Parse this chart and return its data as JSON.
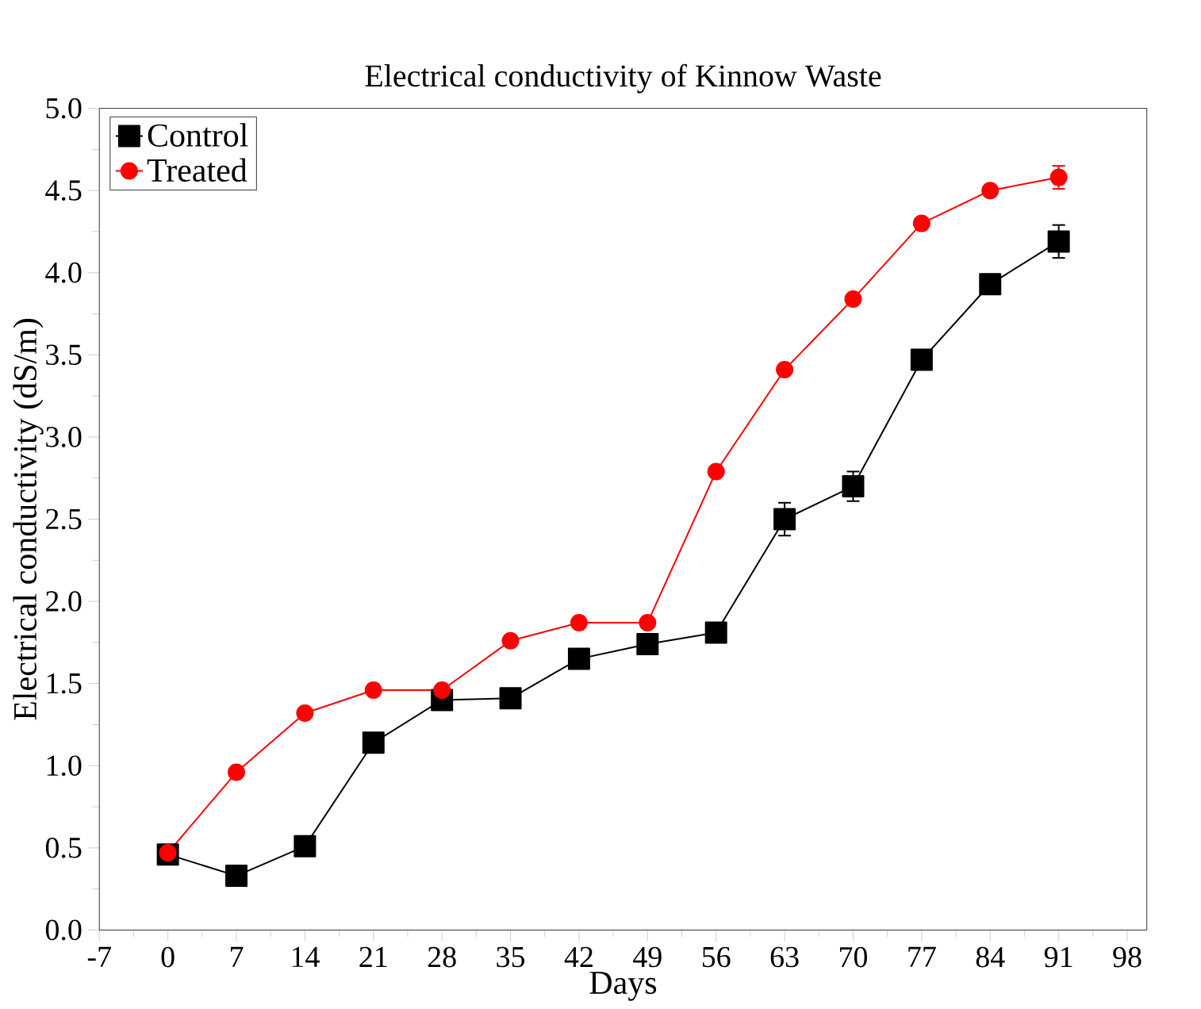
{
  "chart_data": {
    "type": "line",
    "title": "Electrical conductivity of Kinnow Waste",
    "xlabel": "Days",
    "ylabel": "Electrical conductivity (dS/m)",
    "x": [
      0,
      7,
      14,
      21,
      28,
      35,
      42,
      49,
      56,
      63,
      70,
      77,
      84,
      91
    ],
    "series": [
      {
        "name": "Control",
        "color": "#000000",
        "marker": "square",
        "values": [
          0.46,
          0.33,
          0.51,
          1.14,
          1.4,
          1.41,
          1.65,
          1.74,
          1.81,
          2.5,
          2.7,
          3.47,
          3.93,
          4.19
        ],
        "errors": [
          null,
          null,
          null,
          null,
          null,
          null,
          null,
          null,
          null,
          0.1,
          0.09,
          null,
          null,
          0.1
        ]
      },
      {
        "name": "Treated",
        "color": "#ff0000",
        "marker": "circle",
        "values": [
          0.47,
          0.96,
          1.32,
          1.46,
          1.46,
          1.76,
          1.87,
          1.87,
          2.79,
          3.41,
          3.84,
          4.3,
          4.5,
          4.58
        ],
        "errors": [
          null,
          null,
          null,
          null,
          null,
          null,
          null,
          null,
          null,
          null,
          null,
          null,
          null,
          0.07
        ]
      }
    ],
    "xlim": [
      -7,
      100
    ],
    "xticks": [
      -7,
      0,
      7,
      14,
      21,
      28,
      35,
      42,
      49,
      56,
      63,
      70,
      77,
      84,
      91,
      98
    ],
    "ylim": [
      0,
      5
    ],
    "yticks": [
      {
        "value": 0,
        "label": "0.0"
      },
      {
        "value": 0.5,
        "label": "0.5"
      },
      {
        "value": 1,
        "label": "1.0"
      },
      {
        "value": 1.5,
        "label": "1.5"
      },
      {
        "value": 2,
        "label": "2.0"
      },
      {
        "value": 2.5,
        "label": "2.5"
      },
      {
        "value": 3,
        "label": "3.0"
      },
      {
        "value": 3.5,
        "label": "3.5"
      },
      {
        "value": 4,
        "label": "4.0"
      },
      {
        "value": 4.5,
        "label": "4.5"
      },
      {
        "value": 5,
        "label": "5.0"
      }
    ],
    "grid": false,
    "legend": "top left",
    "line_style": "solid"
  }
}
